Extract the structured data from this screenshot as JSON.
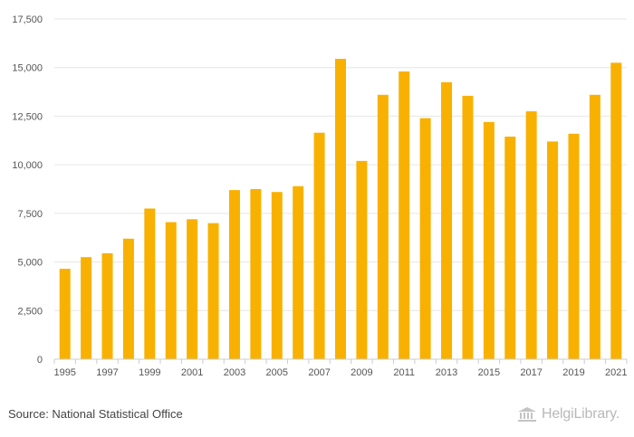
{
  "colors": {
    "bar": "#F8B100",
    "grid": "#E6E6E6",
    "axis": "#CCCCCC",
    "text": "#555555"
  },
  "chart_data": {
    "type": "bar",
    "title": "",
    "xlabel": "",
    "ylabel": "",
    "categories": [
      "1995",
      "1996",
      "1997",
      "1998",
      "1999",
      "2000",
      "2001",
      "2002",
      "2003",
      "2004",
      "2005",
      "2006",
      "2007",
      "2008",
      "2009",
      "2010",
      "2011",
      "2012",
      "2013",
      "2014",
      "2015",
      "2016",
      "2017",
      "2018",
      "2019",
      "2020",
      "2021"
    ],
    "values": [
      4650,
      5250,
      5450,
      6200,
      7750,
      7050,
      7200,
      7000,
      8700,
      8750,
      8600,
      8900,
      11650,
      15450,
      10200,
      13600,
      14800,
      12400,
      14250,
      13550,
      12200,
      11450,
      12750,
      11200,
      11600,
      13600,
      15250
    ],
    "ylim": [
      0,
      17500
    ],
    "yticks": [
      0,
      2500,
      5000,
      7500,
      10000,
      12500,
      15000,
      17500
    ],
    "ytick_labels": [
      "0",
      "2,500",
      "5,000",
      "7,500",
      "10,000",
      "12,500",
      "15,000",
      "17,500"
    ],
    "xtick_labels": [
      "1995",
      "1997",
      "1999",
      "2001",
      "2003",
      "2005",
      "2007",
      "2009",
      "2011",
      "2013",
      "2015",
      "2017",
      "2019",
      "2021"
    ],
    "grid": true,
    "legend": "none"
  },
  "footer": {
    "source": "Source: National Statistical Office",
    "brand": "HelgiLibrary."
  },
  "icons": {
    "brand_logo": "library-columns-icon"
  }
}
